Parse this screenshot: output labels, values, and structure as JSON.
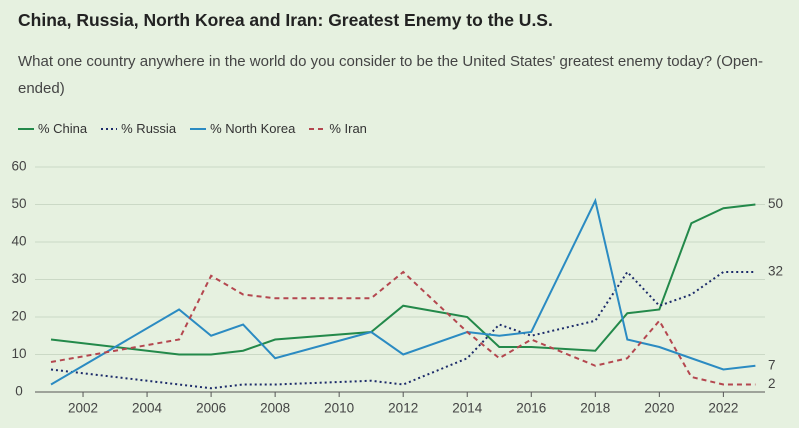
{
  "chart_data": {
    "type": "line",
    "title": "China, Russia, North Korea and Iran: Greatest Enemy to the U.S.",
    "subtitle": "What one country anywhere in the world do you consider to be the United States' greatest enemy today? (Open-ended)",
    "x": [
      2001,
      2005,
      2006,
      2007,
      2008,
      2011,
      2012,
      2014,
      2015,
      2016,
      2018,
      2019,
      2020,
      2021,
      2022,
      2023
    ],
    "series": [
      {
        "name": "% China",
        "color": "#23894a",
        "dash": "solid",
        "values": [
          14,
          10,
          10,
          11,
          14,
          16,
          23,
          20,
          12,
          12,
          11,
          21,
          22,
          45,
          49,
          50
        ]
      },
      {
        "name": "% Russia",
        "color": "#1c2b6a",
        "dash": "dotted",
        "values": [
          6,
          2,
          1,
          2,
          2,
          3,
          2,
          9,
          18,
          15,
          19,
          32,
          23,
          26,
          32,
          32
        ]
      },
      {
        "name": "% North Korea",
        "color": "#2b8bc2",
        "dash": "solid",
        "values": [
          2,
          22,
          15,
          18,
          9,
          16,
          10,
          16,
          15,
          16,
          51,
          14,
          12,
          9,
          6,
          7
        ]
      },
      {
        "name": "% Iran",
        "color": "#b4474f",
        "dash": "dashed",
        "values": [
          8,
          14,
          31,
          26,
          25,
          25,
          32,
          16,
          9,
          14,
          7,
          9,
          19,
          4,
          2,
          2
        ]
      }
    ],
    "xlim": [
      2000.5,
      2023.3
    ],
    "xticks": [
      2002,
      2004,
      2006,
      2008,
      2010,
      2012,
      2014,
      2016,
      2018,
      2020,
      2022
    ],
    "ylim": [
      0,
      60
    ],
    "yticks": [
      0,
      10,
      20,
      30,
      40,
      50,
      60
    ],
    "grid": true,
    "end_labels": true
  }
}
